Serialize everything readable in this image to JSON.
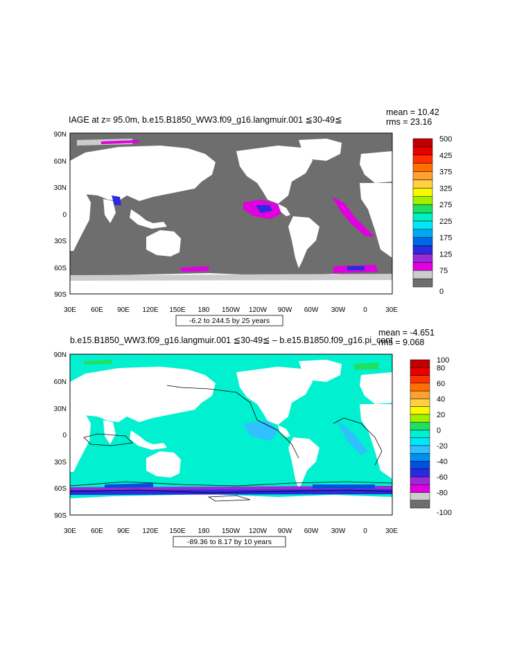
{
  "panels": [
    {
      "id": "top",
      "title": "IAGE at z=  95.0m, b.e15.B1850_WW3.f09_g16.langmuir.001 ≦30-49≦",
      "mean_text": "mean = 10.42",
      "rms_text": "rms = 23.16",
      "range_text": "-6.2 to 244.5 by 25 years",
      "y_ticks": [
        "90N",
        "60N",
        "30N",
        "0",
        "30S",
        "60S",
        "90S"
      ],
      "x_ticks": [
        "30E",
        "60E",
        "90E",
        "120E",
        "150E",
        "180",
        "150W",
        "120W",
        "90W",
        "60W",
        "30W",
        "0",
        "30E"
      ],
      "colorbar": {
        "colors": [
          "#6e6e6e",
          "#cccccc",
          "#e000e0",
          "#9a2ad8",
          "#2a2ae0",
          "#0068e8",
          "#00a8f0",
          "#00e8f8",
          "#00f0c0",
          "#20e060",
          "#a0f000",
          "#f8f800",
          "#ffd040",
          "#ffa030",
          "#ff7000",
          "#ff3000",
          "#e80000",
          "#c00000"
        ],
        "labels": [
          "0",
          "75",
          "125",
          "175",
          "225",
          "275",
          "325",
          "375",
          "425",
          "500"
        ],
        "label_slots": [
          0,
          2,
          4,
          6,
          8,
          10,
          12,
          14,
          16,
          18
        ]
      }
    },
    {
      "id": "bottom",
      "title": "b.e15.B1850_WW3.f09_g16.langmuir.001 ≦30-49≦ – b.e15.B1850.f09_g16.pi_cont",
      "mean_text": "mean = -4.651",
      "rms_text": "rms = 9.068",
      "range_text": "-89.36 to 8.17 by 10 years",
      "y_ticks": [
        "90N",
        "60N",
        "30N",
        "0",
        "30S",
        "60S",
        "90S"
      ],
      "x_ticks": [
        "30E",
        "60E",
        "90E",
        "120E",
        "150E",
        "180",
        "150W",
        "120W",
        "90W",
        "60W",
        "30W",
        "0",
        "30E"
      ],
      "colorbar": {
        "colors": [
          "#6e6e6e",
          "#cccccc",
          "#e000e0",
          "#9a2ad8",
          "#2a2ae0",
          "#0050e0",
          "#0090f0",
          "#30c0ff",
          "#00e8f8",
          "#00f0d0",
          "#20e060",
          "#a0f000",
          "#f8f800",
          "#ffd040",
          "#ffa030",
          "#ff7000",
          "#ff3000",
          "#e80000",
          "#c00000"
        ],
        "labels": [
          "-100",
          "-80",
          "-60",
          "-40",
          "-20",
          "0",
          "20",
          "40",
          "60",
          "80",
          "100"
        ],
        "label_slots": [
          0,
          2,
          4,
          6,
          8,
          10,
          12,
          14,
          16,
          18,
          19
        ]
      }
    }
  ],
  "colors": {
    "land": "#ffffff",
    "ocean_top": "#6e6e6e",
    "ocean_bottom": "#00f0d0"
  }
}
